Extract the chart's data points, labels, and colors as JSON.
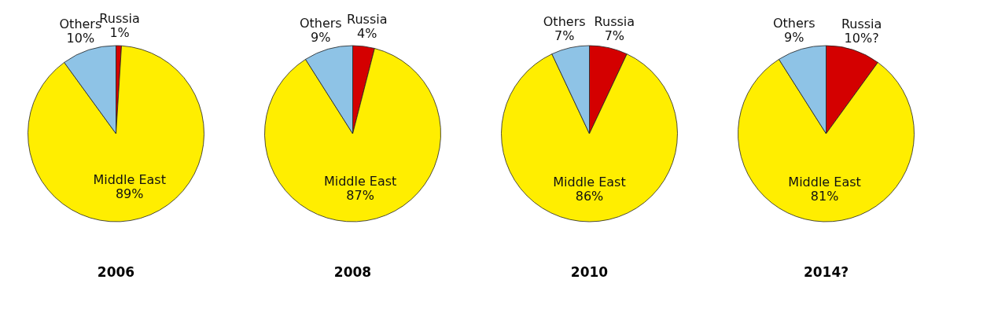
{
  "chart_data": [
    {
      "type": "pie",
      "title": "2006",
      "categories": [
        "Russia",
        "Middle East",
        "Others"
      ],
      "values": [
        1,
        89,
        10
      ],
      "value_labels": [
        "1%",
        "89%",
        "10%"
      ],
      "colors": [
        "#d40000",
        "#ffee00",
        "#8ec3e6"
      ]
    },
    {
      "type": "pie",
      "title": "2008",
      "categories": [
        "Russia",
        "Middle East",
        "Others"
      ],
      "values": [
        4,
        87,
        9
      ],
      "value_labels": [
        "4%",
        "87%",
        "9%"
      ],
      "colors": [
        "#d40000",
        "#ffee00",
        "#8ec3e6"
      ]
    },
    {
      "type": "pie",
      "title": "2010",
      "categories": [
        "Russia",
        "Middle East",
        "Others"
      ],
      "values": [
        7,
        86,
        7
      ],
      "value_labels": [
        "7%",
        "86%",
        "7%"
      ],
      "colors": [
        "#d40000",
        "#ffee00",
        "#8ec3e6"
      ]
    },
    {
      "type": "pie",
      "title": "2014?",
      "categories": [
        "Russia",
        "Middle East",
        "Others"
      ],
      "values": [
        10,
        81,
        9
      ],
      "value_labels": [
        "10%?",
        "81%",
        "9%"
      ],
      "colors": [
        "#d40000",
        "#ffee00",
        "#8ec3e6"
      ]
    }
  ]
}
